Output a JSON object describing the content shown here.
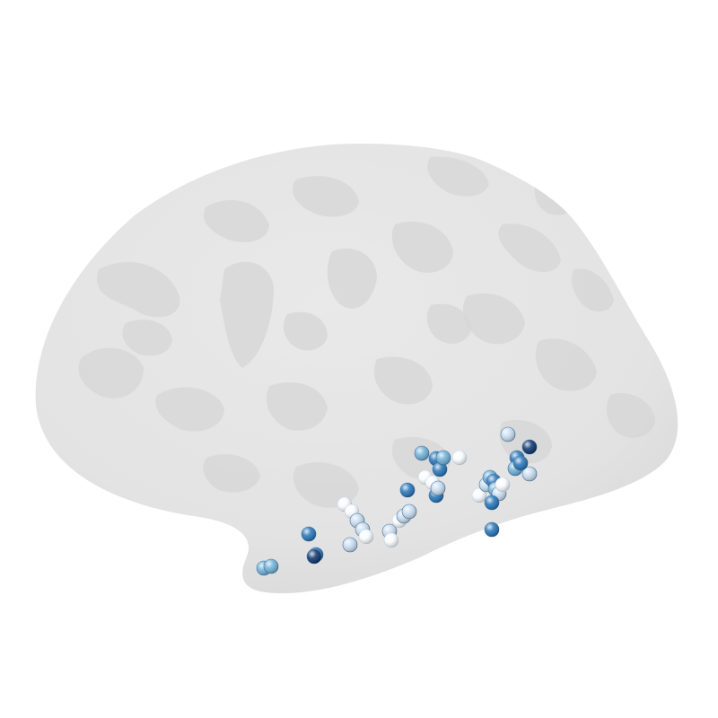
{
  "scene": {
    "background": "#ffffff",
    "surface": {
      "kind": "inflated-cortical-surface",
      "hemisphere_view": "lateral",
      "base_color": "#e2e2e2",
      "gyri_color": "#e2e2e2",
      "sulci_color": "#d6d6d6"
    },
    "electrodes": {
      "marker": "sphere",
      "colormap": "Blues",
      "color_scale": [
        "#f7fbff",
        "#c6dbef",
        "#6baed6",
        "#2171b5",
        "#08306b"
      ],
      "count": 58
    }
  }
}
